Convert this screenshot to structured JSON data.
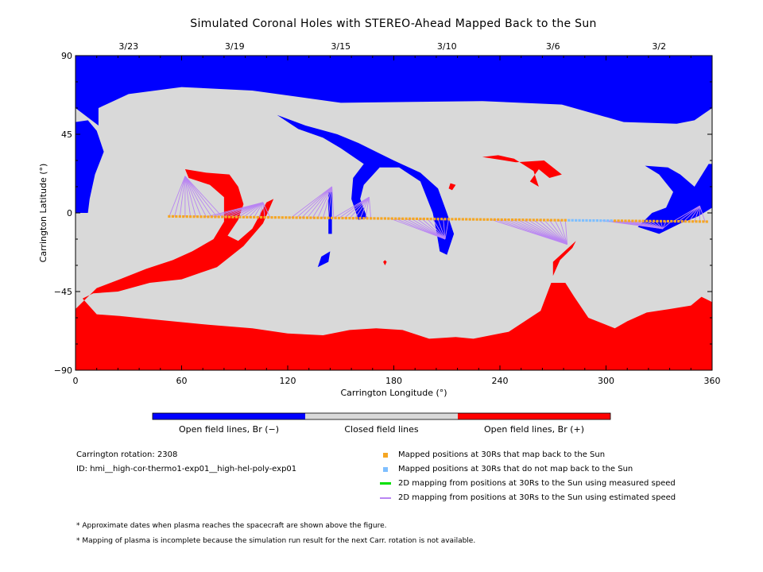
{
  "title": "Simulated Coronal Holes with STEREO-Ahead Mapped Back to the Sun",
  "chart_data": {
    "type": "map",
    "xlabel": "Carrington Longitude (°)",
    "ylabel": "Carrington Latitude (°)",
    "xlim": [
      0,
      360
    ],
    "ylim": [
      -90,
      90
    ],
    "x_ticks": [
      0,
      60,
      120,
      180,
      240,
      300,
      360
    ],
    "y_ticks": [
      90,
      45,
      0,
      -45,
      -90
    ],
    "x_tick_labels": [
      "0",
      "60",
      "120",
      "180",
      "240",
      "300",
      "360"
    ],
    "y_tick_labels": [
      "90",
      "45",
      "0",
      "−45",
      "−90"
    ],
    "top_dates": [
      {
        "label": "3/23",
        "lon": 30
      },
      {
        "label": "3/19",
        "lon": 90
      },
      {
        "label": "3/15",
        "lon": 150
      },
      {
        "label": "3/10",
        "lon": 210
      },
      {
        "label": "3/6",
        "lon": 270
      },
      {
        "label": "3/2",
        "lon": 330
      }
    ],
    "colors": {
      "open_negative": "#0000ff",
      "closed": "#d9d9d9",
      "open_positive": "#ff0000",
      "mapped": "#f5a623",
      "unmapped": "#7fbfff",
      "measured_line": "#00e000",
      "estimated_line": "#b985f2"
    },
    "spacecraft_track": {
      "lon_start": 53,
      "lon_end": 358,
      "lat_start": -2,
      "lat_end": -5,
      "unmapped_lon_range": [
        279,
        303
      ]
    },
    "mapping_fans": [
      {
        "from_lon": [
          53,
          83
        ],
        "to": {
          "lon": 62,
          "lat": 21
        }
      },
      {
        "from_lon": [
          74,
          111
        ],
        "to": {
          "lon": 106,
          "lat": 6
        }
      },
      {
        "from_lon": [
          122,
          148
        ],
        "to": {
          "lon": 145,
          "lat": 15
        }
      },
      {
        "from_lon": [
          146,
          168
        ],
        "to": {
          "lon": 166,
          "lat": 9
        }
      },
      {
        "from_lon": [
          178,
          213
        ],
        "to": {
          "lon": 209,
          "lat": -15
        }
      },
      {
        "from_lon": [
          235,
          278
        ],
        "to": {
          "lon": 278,
          "lat": -18
        }
      },
      {
        "from_lon": [
          298,
          338
        ],
        "to": {
          "lon": 332,
          "lat": -9
        }
      },
      {
        "from_lon": [
          338,
          357
        ],
        "to": {
          "lon": 353,
          "lat": 4
        }
      }
    ],
    "regions": {
      "open_negative": [
        [
          [
            0,
            90
          ],
          [
            360,
            90
          ],
          [
            360,
            60
          ],
          [
            350,
            53
          ],
          [
            340,
            51
          ],
          [
            310,
            52
          ],
          [
            275,
            62
          ],
          [
            230,
            64
          ],
          [
            150,
            63
          ],
          [
            100,
            70
          ],
          [
            60,
            72
          ],
          [
            30,
            68
          ],
          [
            13,
            60
          ],
          [
            13,
            50
          ],
          [
            0,
            60
          ]
        ],
        [
          [
            0,
            52
          ],
          [
            7,
            53
          ],
          [
            12,
            47
          ],
          [
            16,
            35
          ],
          [
            11,
            22
          ],
          [
            8,
            8
          ],
          [
            7,
            0
          ],
          [
            0,
            0
          ]
        ],
        [
          [
            322,
            27
          ],
          [
            335,
            26
          ],
          [
            342,
            22
          ],
          [
            350,
            15
          ],
          [
            358,
            28
          ],
          [
            360,
            28
          ],
          [
            360,
            3
          ],
          [
            352,
            -2
          ],
          [
            342,
            -6
          ],
          [
            330,
            -12
          ],
          [
            318,
            -8
          ],
          [
            326,
            0
          ],
          [
            334,
            3
          ],
          [
            338,
            12
          ],
          [
            330,
            22
          ]
        ],
        [
          [
            114,
            56
          ],
          [
            130,
            50
          ],
          [
            148,
            45
          ],
          [
            160,
            40
          ],
          [
            172,
            34
          ],
          [
            180,
            30
          ],
          [
            195,
            23
          ],
          [
            205,
            14
          ],
          [
            210,
            0
          ],
          [
            214,
            -12
          ],
          [
            210,
            -24
          ],
          [
            206,
            -22
          ],
          [
            204,
            -10
          ],
          [
            202,
            0
          ],
          [
            195,
            18
          ],
          [
            183,
            26
          ],
          [
            172,
            26
          ],
          [
            163,
            16
          ],
          [
            161,
            8
          ],
          [
            165,
            -3
          ],
          [
            160,
            -4
          ],
          [
            156,
            8
          ],
          [
            157,
            20
          ],
          [
            163,
            28
          ],
          [
            150,
            37
          ],
          [
            140,
            43
          ],
          [
            126,
            48
          ]
        ],
        [
          [
            143,
            12
          ],
          [
            145,
            12
          ],
          [
            145,
            -12
          ],
          [
            143,
            -12
          ]
        ],
        [
          [
            139,
            -25
          ],
          [
            144,
            -22
          ],
          [
            143,
            -28
          ],
          [
            137,
            -31
          ]
        ]
      ],
      "open_positive": [
        [
          [
            0,
            -90
          ],
          [
            360,
            -90
          ],
          [
            360,
            -51
          ],
          [
            354,
            -48
          ],
          [
            348,
            -53
          ],
          [
            336,
            -55
          ],
          [
            323,
            -57
          ],
          [
            312,
            -62
          ],
          [
            305,
            -66
          ],
          [
            290,
            -60
          ],
          [
            282,
            -48
          ],
          [
            277,
            -40
          ],
          [
            269,
            -40
          ],
          [
            263,
            -56
          ],
          [
            245,
            -68
          ],
          [
            225,
            -72
          ],
          [
            215,
            -71
          ],
          [
            200,
            -72
          ],
          [
            185,
            -67
          ],
          [
            170,
            -66
          ],
          [
            155,
            -67
          ],
          [
            140,
            -70
          ],
          [
            120,
            -69
          ],
          [
            100,
            -66
          ],
          [
            75,
            -64
          ],
          [
            45,
            -61
          ],
          [
            25,
            -59
          ],
          [
            12,
            -58
          ],
          [
            4,
            -49
          ],
          [
            10,
            -46
          ],
          [
            24,
            -45
          ],
          [
            42,
            -40
          ],
          [
            60,
            -38
          ],
          [
            80,
            -31
          ],
          [
            95,
            -19
          ],
          [
            106,
            -6
          ],
          [
            112,
            8
          ],
          [
            108,
            6
          ],
          [
            100,
            -9
          ],
          [
            92,
            -16
          ],
          [
            86,
            -13
          ],
          [
            92,
            -4
          ],
          [
            95,
            5
          ],
          [
            92,
            15
          ],
          [
            87,
            22
          ],
          [
            74,
            23
          ],
          [
            62,
            25
          ],
          [
            64,
            20
          ],
          [
            76,
            16
          ],
          [
            84,
            9
          ],
          [
            84,
            -5
          ],
          [
            78,
            -15
          ],
          [
            66,
            -22
          ],
          [
            55,
            -27
          ],
          [
            40,
            -32
          ],
          [
            25,
            -38
          ],
          [
            12,
            -43
          ],
          [
            5,
            -50
          ],
          [
            0,
            -55
          ]
        ],
        [
          [
            249,
            29
          ],
          [
            265,
            30
          ],
          [
            275,
            22
          ],
          [
            268,
            20
          ],
          [
            262,
            25
          ],
          [
            257,
            18
          ],
          [
            262,
            15
          ],
          [
            259,
            24
          ],
          [
            248,
            31
          ],
          [
            239,
            33
          ],
          [
            230,
            32
          ]
        ],
        [
          [
            270,
            -28
          ],
          [
            283,
            -16
          ],
          [
            281,
            -20
          ],
          [
            274,
            -27
          ],
          [
            270,
            -36
          ]
        ],
        [
          [
            212,
            17
          ],
          [
            215,
            16
          ],
          [
            213,
            13
          ],
          [
            211,
            14
          ]
        ],
        [
          [
            175,
            -27
          ],
          [
            176,
            -28
          ],
          [
            175,
            -30
          ],
          [
            174,
            -28
          ]
        ]
      ]
    },
    "colorbar": {
      "labels": [
        "Open field lines, Br (−)",
        "Closed field lines",
        "Open field lines, Br (+)"
      ]
    }
  },
  "info": {
    "rotation": "Carrington rotation: 2308",
    "id": "ID: hmi__high-cor-thermo1-exp01__high-hel-poly-exp01"
  },
  "legend": [
    {
      "label": "Mapped positions at 30Rs that map back to the Sun",
      "kind": "square",
      "color": "#f5a623"
    },
    {
      "label": "Mapped positions at 30Rs that do not map back to the Sun",
      "kind": "square",
      "color": "#7fbfff"
    },
    {
      "label": "2D mapping from positions at 30Rs to the Sun using measured speed",
      "kind": "line",
      "color": "#00e000"
    },
    {
      "label": "2D mapping from positions at 30Rs to the Sun using estimated speed",
      "kind": "line",
      "color": "#b985f2"
    }
  ],
  "notes": [
    "* Approximate dates when plasma reaches the spacecraft are shown above the figure.",
    "* Mapping of plasma is incomplete because the simulation run result for the next Carr. rotation is not available."
  ]
}
